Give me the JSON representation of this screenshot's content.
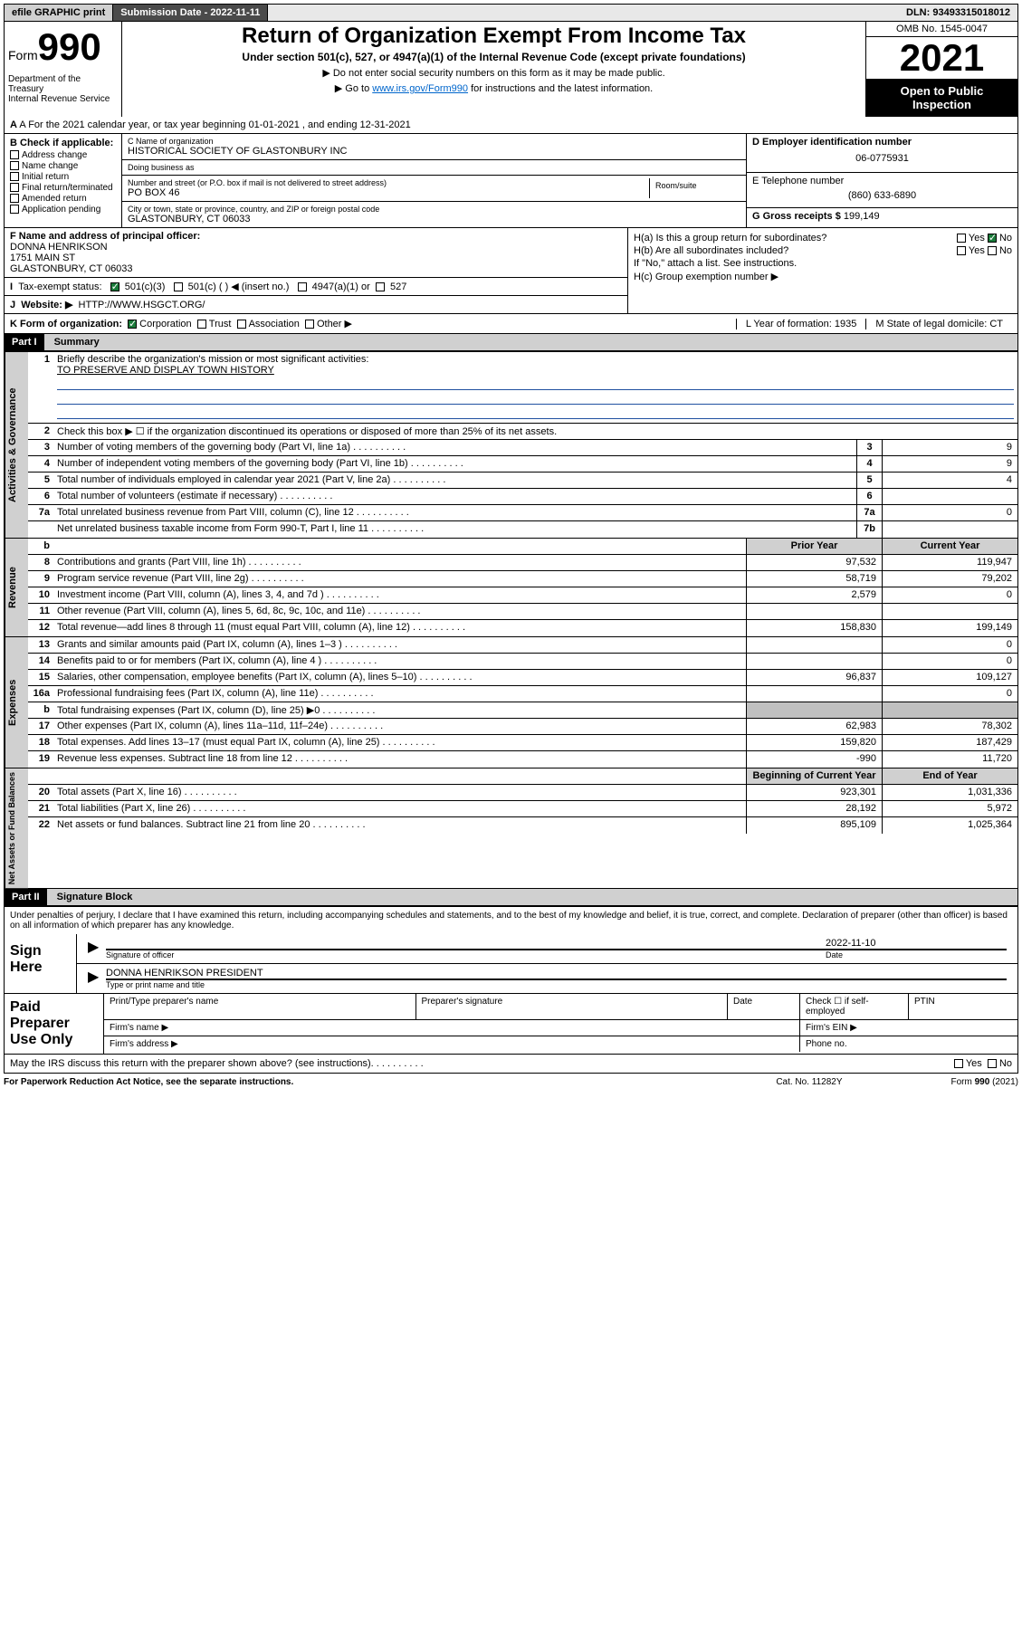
{
  "topbar": {
    "efile": "efile GRAPHIC print",
    "submission": "Submission Date - 2022-11-11",
    "dln": "DLN: 93493315018012"
  },
  "header": {
    "form_word": "Form",
    "form_num": "990",
    "dept": "Department of the Treasury\nInternal Revenue Service",
    "title": "Return of Organization Exempt From Income Tax",
    "subtitle": "Under section 501(c), 527, or 4947(a)(1) of the Internal Revenue Code (except private foundations)",
    "arrow1": "▶ Do not enter social security numbers on this form as it may be made public.",
    "arrow2_pre": "▶ Go to ",
    "arrow2_link": "www.irs.gov/Form990",
    "arrow2_post": " for instructions and the latest information.",
    "omb": "OMB No. 1545-0047",
    "year": "2021",
    "open": "Open to Public Inspection"
  },
  "row_a": "A For the 2021 calendar year, or tax year beginning 01-01-2021   , and ending 12-31-2021",
  "col_b": {
    "label": "B Check if applicable:",
    "opts": [
      "Address change",
      "Name change",
      "Initial return",
      "Final return/terminated",
      "Amended return",
      "Application pending"
    ]
  },
  "col_c": {
    "name_lbl": "C Name of organization",
    "name": "HISTORICAL SOCIETY OF GLASTONBURY INC",
    "dba_lbl": "Doing business as",
    "dba": "",
    "addr_lbl": "Number and street (or P.O. box if mail is not delivered to street address)",
    "room_lbl": "Room/suite",
    "addr": "PO BOX 46",
    "city_lbl": "City or town, state or province, country, and ZIP or foreign postal code",
    "city": "GLASTONBURY, CT  06033"
  },
  "col_d": {
    "ein_lbl": "D Employer identification number",
    "ein": "06-0775931",
    "tel_lbl": "E Telephone number",
    "tel": "(860) 633-6890",
    "gross_lbl": "G Gross receipts $",
    "gross": "199,149"
  },
  "row_f": {
    "lbl": "F Name and address of principal officer:",
    "name": "DONNA HENRIKSON",
    "addr1": "1751 MAIN ST",
    "addr2": "GLASTONBURY, CT  06033"
  },
  "row_h": {
    "ha": "H(a)  Is this a group return for subordinates?",
    "hb": "H(b)  Are all subordinates included?",
    "hb2": "If \"No,\" attach a list. See instructions.",
    "hc": "H(c)  Group exemption number ▶",
    "yes": "Yes",
    "no": "No"
  },
  "row_i": {
    "lbl": "Tax-exempt status:",
    "o1": "501(c)(3)",
    "o2": "501(c) (  ) ◀ (insert no.)",
    "o3": "4947(a)(1) or",
    "o4": "527"
  },
  "row_j": {
    "lbl": "Website: ▶",
    "val": "HTTP://WWW.HSGCT.ORG/"
  },
  "row_k": {
    "lbl": "K Form of organization:",
    "o1": "Corporation",
    "o2": "Trust",
    "o3": "Association",
    "o4": "Other ▶",
    "l": "L Year of formation: 1935",
    "m": "M State of legal domicile: CT"
  },
  "part1": {
    "hdr": "Part I",
    "title": "Summary"
  },
  "summary": {
    "q1": "Briefly describe the organization's mission or most significant activities:",
    "q1v": "TO PRESERVE AND DISPLAY TOWN HISTORY",
    "q2": "Check this box ▶ ☐  if the organization discontinued its operations or disposed of more than 25% of its net assets.",
    "rows_gov": [
      {
        "n": "3",
        "d": "Number of voting members of the governing body (Part VI, line 1a)",
        "b": "3",
        "v": "9"
      },
      {
        "n": "4",
        "d": "Number of independent voting members of the governing body (Part VI, line 1b)",
        "b": "4",
        "v": "9"
      },
      {
        "n": "5",
        "d": "Total number of individuals employed in calendar year 2021 (Part V, line 2a)",
        "b": "5",
        "v": "4"
      },
      {
        "n": "6",
        "d": "Total number of volunteers (estimate if necessary)",
        "b": "6",
        "v": ""
      },
      {
        "n": "7a",
        "d": "Total unrelated business revenue from Part VIII, column (C), line 12",
        "b": "7a",
        "v": "0"
      },
      {
        "n": "",
        "d": "Net unrelated business taxable income from Form 990-T, Part I, line 11",
        "b": "7b",
        "v": ""
      }
    ],
    "col_hdr_b": "b",
    "col_hdr_prior": "Prior Year",
    "col_hdr_curr": "Current Year",
    "rows_rev": [
      {
        "n": "8",
        "d": "Contributions and grants (Part VIII, line 1h)",
        "p": "97,532",
        "c": "119,947"
      },
      {
        "n": "9",
        "d": "Program service revenue (Part VIII, line 2g)",
        "p": "58,719",
        "c": "79,202"
      },
      {
        "n": "10",
        "d": "Investment income (Part VIII, column (A), lines 3, 4, and 7d )",
        "p": "2,579",
        "c": "0"
      },
      {
        "n": "11",
        "d": "Other revenue (Part VIII, column (A), lines 5, 6d, 8c, 9c, 10c, and 11e)",
        "p": "",
        "c": ""
      },
      {
        "n": "12",
        "d": "Total revenue—add lines 8 through 11 (must equal Part VIII, column (A), line 12)",
        "p": "158,830",
        "c": "199,149"
      }
    ],
    "rows_exp": [
      {
        "n": "13",
        "d": "Grants and similar amounts paid (Part IX, column (A), lines 1–3 )",
        "p": "",
        "c": "0"
      },
      {
        "n": "14",
        "d": "Benefits paid to or for members (Part IX, column (A), line 4 )",
        "p": "",
        "c": "0"
      },
      {
        "n": "15",
        "d": "Salaries, other compensation, employee benefits (Part IX, column (A), lines 5–10)",
        "p": "96,837",
        "c": "109,127"
      },
      {
        "n": "16a",
        "d": "Professional fundraising fees (Part IX, column (A), line 11e)",
        "p": "",
        "c": "0"
      },
      {
        "n": "b",
        "d": "Total fundraising expenses (Part IX, column (D), line 25) ▶0",
        "p": "",
        "c": "",
        "grey": true
      },
      {
        "n": "17",
        "d": "Other expenses (Part IX, column (A), lines 11a–11d, 11f–24e)",
        "p": "62,983",
        "c": "78,302"
      },
      {
        "n": "18",
        "d": "Total expenses. Add lines 13–17 (must equal Part IX, column (A), line 25)",
        "p": "159,820",
        "c": "187,429"
      },
      {
        "n": "19",
        "d": "Revenue less expenses. Subtract line 18 from line 12",
        "p": "-990",
        "c": "11,720"
      }
    ],
    "col_hdr_beg": "Beginning of Current Year",
    "col_hdr_end": "End of Year",
    "rows_net": [
      {
        "n": "20",
        "d": "Total assets (Part X, line 16)",
        "p": "923,301",
        "c": "1,031,336"
      },
      {
        "n": "21",
        "d": "Total liabilities (Part X, line 26)",
        "p": "28,192",
        "c": "5,972"
      },
      {
        "n": "22",
        "d": "Net assets or fund balances. Subtract line 21 from line 20",
        "p": "895,109",
        "c": "1,025,364"
      }
    ]
  },
  "part2": {
    "hdr": "Part II",
    "title": "Signature Block"
  },
  "sig": {
    "intro": "Under penalties of perjury, I declare that I have examined this return, including accompanying schedules and statements, and to the best of my knowledge and belief, it is true, correct, and complete. Declaration of preparer (other than officer) is based on all information of which preparer has any knowledge.",
    "sign_here": "Sign Here",
    "sig_officer": "Signature of officer",
    "date_lbl": "Date",
    "date": "2022-11-10",
    "name": "DONNA HENRIKSON PRESIDENT",
    "name_lbl": "Type or print name and title",
    "paid": "Paid Preparer Use Only",
    "p_name": "Print/Type preparer's name",
    "p_sig": "Preparer's signature",
    "p_date": "Date",
    "p_check": "Check ☐ if self-employed",
    "p_ptin": "PTIN",
    "p_firm": "Firm's name   ▶",
    "p_ein": "Firm's EIN ▶",
    "p_addr": "Firm's address ▶",
    "p_phone": "Phone no.",
    "discuss": "May the IRS discuss this return with the preparer shown above? (see instructions)"
  },
  "footer": {
    "left": "For Paperwork Reduction Act Notice, see the separate instructions.",
    "mid": "Cat. No. 11282Y",
    "right": "Form 990 (2021)"
  }
}
